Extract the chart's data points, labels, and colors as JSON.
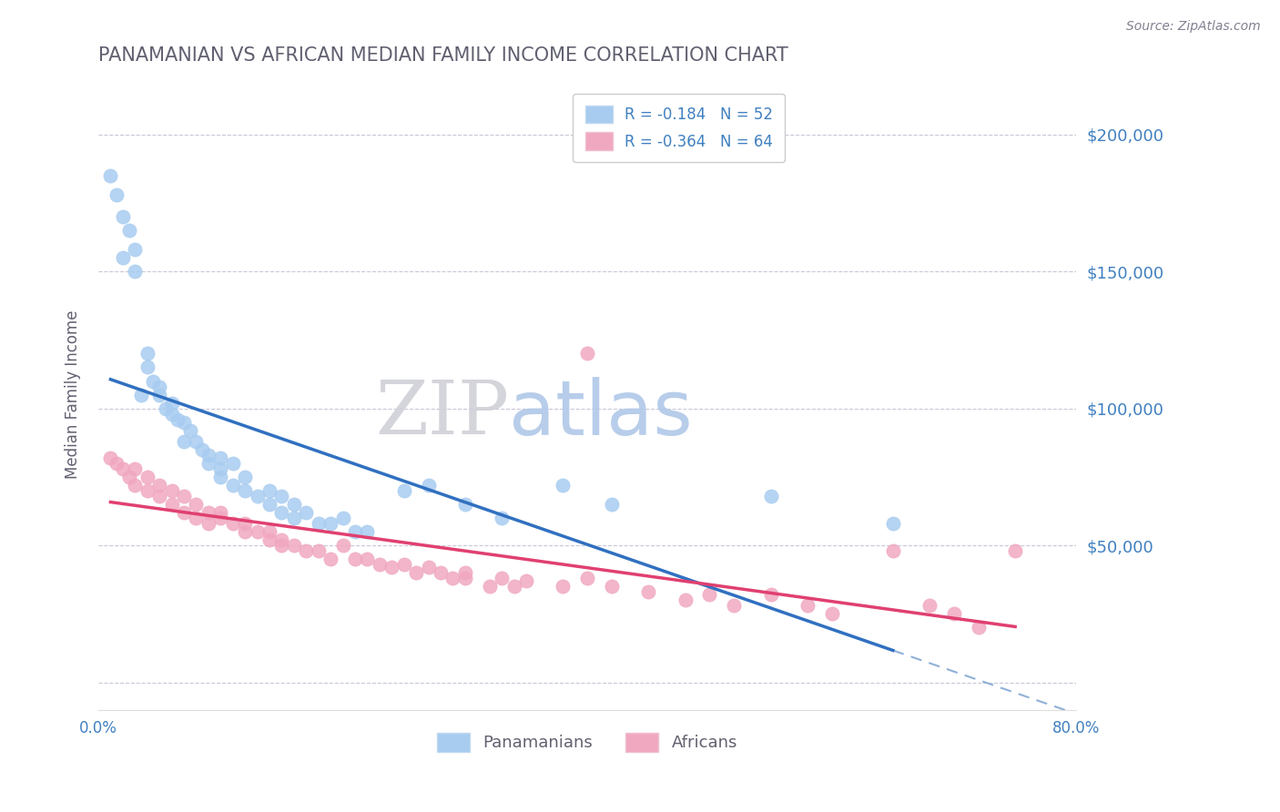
{
  "title": "PANAMANIAN VS AFRICAN MEDIAN FAMILY INCOME CORRELATION CHART",
  "source": "Source: ZipAtlas.com",
  "ylabel": "Median Family Income",
  "xlim": [
    0.0,
    0.8
  ],
  "ylim": [
    -10000,
    220000
  ],
  "yticks": [
    0,
    50000,
    100000,
    150000,
    200000
  ],
  "ytick_labels": [
    "",
    "$50,000",
    "$100,000",
    "$150,000",
    "$200,000"
  ],
  "panamanian_color": "#a8ccf0",
  "african_color": "#f0a8c0",
  "trend_line_color_pan": "#3070c0",
  "trend_line_color_afr": "#e04070",
  "dashed_line_color": "#90b0d8",
  "legend_r_pan": "R = -0.184",
  "legend_n_pan": "N = 52",
  "legend_r_afr": "R = -0.364",
  "legend_n_afr": "N = 64",
  "label_pan": "Panamanians",
  "label_afr": "Africans",
  "background_color": "#ffffff",
  "grid_color": "#c8c8d8",
  "title_color": "#606070",
  "axis_label_color": "#606070",
  "tick_color": "#4080c0",
  "pan_x": [
    0.01,
    0.015,
    0.02,
    0.02,
    0.025,
    0.03,
    0.03,
    0.035,
    0.04,
    0.04,
    0.045,
    0.05,
    0.05,
    0.055,
    0.06,
    0.06,
    0.065,
    0.07,
    0.07,
    0.075,
    0.08,
    0.085,
    0.09,
    0.09,
    0.1,
    0.1,
    0.1,
    0.11,
    0.11,
    0.12,
    0.12,
    0.13,
    0.14,
    0.14,
    0.15,
    0.15,
    0.16,
    0.16,
    0.17,
    0.18,
    0.19,
    0.2,
    0.21,
    0.22,
    0.25,
    0.27,
    0.3,
    0.33,
    0.38,
    0.42,
    0.55,
    0.65
  ],
  "pan_y": [
    185000,
    178000,
    170000,
    155000,
    165000,
    150000,
    158000,
    105000,
    120000,
    115000,
    110000,
    108000,
    105000,
    100000,
    98000,
    102000,
    96000,
    95000,
    88000,
    92000,
    88000,
    85000,
    83000,
    80000,
    82000,
    78000,
    75000,
    80000,
    72000,
    75000,
    70000,
    68000,
    70000,
    65000,
    68000,
    62000,
    65000,
    60000,
    62000,
    58000,
    58000,
    60000,
    55000,
    55000,
    70000,
    72000,
    65000,
    60000,
    72000,
    65000,
    68000,
    58000
  ],
  "afr_x": [
    0.01,
    0.015,
    0.02,
    0.025,
    0.03,
    0.03,
    0.04,
    0.04,
    0.05,
    0.05,
    0.06,
    0.06,
    0.07,
    0.07,
    0.08,
    0.08,
    0.09,
    0.09,
    0.1,
    0.1,
    0.11,
    0.12,
    0.12,
    0.13,
    0.14,
    0.14,
    0.15,
    0.15,
    0.16,
    0.17,
    0.18,
    0.19,
    0.2,
    0.21,
    0.22,
    0.23,
    0.24,
    0.25,
    0.26,
    0.27,
    0.28,
    0.29,
    0.3,
    0.3,
    0.32,
    0.33,
    0.34,
    0.35,
    0.38,
    0.4,
    0.42,
    0.45,
    0.48,
    0.5,
    0.52,
    0.55,
    0.58,
    0.6,
    0.65,
    0.68,
    0.7,
    0.72,
    0.75,
    0.4
  ],
  "afr_y": [
    82000,
    80000,
    78000,
    75000,
    72000,
    78000,
    70000,
    75000,
    68000,
    72000,
    70000,
    65000,
    68000,
    62000,
    65000,
    60000,
    62000,
    58000,
    62000,
    60000,
    58000,
    58000,
    55000,
    55000,
    55000,
    52000,
    52000,
    50000,
    50000,
    48000,
    48000,
    45000,
    50000,
    45000,
    45000,
    43000,
    42000,
    43000,
    40000,
    42000,
    40000,
    38000,
    38000,
    40000,
    35000,
    38000,
    35000,
    37000,
    35000,
    38000,
    35000,
    33000,
    30000,
    32000,
    28000,
    32000,
    28000,
    25000,
    48000,
    28000,
    25000,
    20000,
    48000,
    120000
  ]
}
